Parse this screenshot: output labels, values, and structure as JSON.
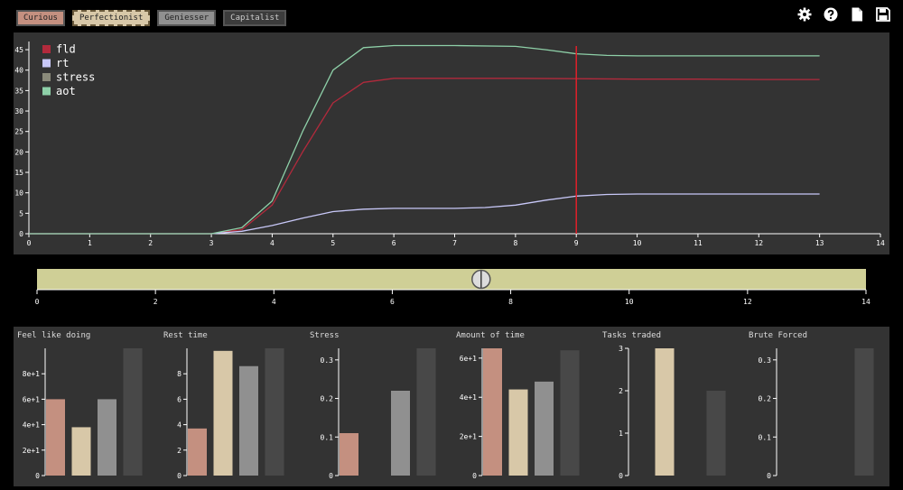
{
  "personas": [
    {
      "label": "Curious",
      "color": "#c49080",
      "selected": false
    },
    {
      "label": "Perfectionist",
      "color": "#d8c8a8",
      "selected": true
    },
    {
      "label": "Geniesser",
      "color": "#909090",
      "selected": false
    },
    {
      "label": "Capitalist",
      "color": "#3c3c3c",
      "selected": false
    }
  ],
  "toolbar_icons": [
    "gear-icon",
    "help-icon",
    "document-icon",
    "save-icon"
  ],
  "colors": {
    "background": "#000000",
    "panel": "#333333",
    "slider": "#cfcf96",
    "cursor": "#e0202a"
  },
  "chart_data": [
    {
      "type": "line",
      "xlim": [
        0,
        14
      ],
      "ylim": [
        0,
        47
      ],
      "x_ticks": [
        0,
        1,
        2,
        3,
        4,
        5,
        6,
        7,
        8,
        9,
        10,
        11,
        12,
        13,
        14
      ],
      "y_ticks": [
        0,
        5,
        10,
        15,
        20,
        25,
        30,
        35,
        40,
        45
      ],
      "cursor_x": 9,
      "legend_position": "top-left",
      "series": [
        {
          "name": "fld",
          "color": "#b22a3c",
          "x": [
            0,
            3,
            3.5,
            4,
            4.5,
            5,
            5.5,
            6,
            7,
            8,
            9,
            10,
            11,
            12,
            13
          ],
          "y": [
            0,
            0,
            1,
            7,
            20,
            32,
            37,
            38,
            38,
            38,
            37.9,
            37.8,
            37.8,
            37.7,
            37.7
          ]
        },
        {
          "name": "rt",
          "color": "#c8c8f8",
          "x": [
            0,
            3,
            3.5,
            4,
            4.5,
            5,
            5.5,
            6,
            7,
            7.5,
            8,
            8.5,
            9,
            9.5,
            10,
            11,
            12,
            13
          ],
          "y": [
            0,
            0,
            0.6,
            2,
            3.8,
            5.4,
            6,
            6.2,
            6.2,
            6.4,
            7,
            8.2,
            9.2,
            9.6,
            9.7,
            9.7,
            9.7,
            9.7
          ]
        },
        {
          "name": "stress",
          "color": "#8a8a7a",
          "x": [],
          "y": []
        },
        {
          "name": "aot",
          "color": "#8ed0a8",
          "x": [
            0,
            3,
            3.5,
            4,
            4.5,
            5,
            5.5,
            6,
            7,
            8,
            8.5,
            9,
            9.5,
            10,
            11,
            12,
            13
          ],
          "y": [
            0,
            0,
            1.5,
            8,
            25,
            40,
            45.5,
            46,
            46,
            45.8,
            45,
            44,
            43.6,
            43.5,
            43.5,
            43.5,
            43.5
          ]
        }
      ]
    },
    {
      "type": "slider",
      "xlim": [
        0,
        14
      ],
      "ticks": [
        0,
        2,
        4,
        6,
        8,
        10,
        12,
        14
      ],
      "value": 7.5
    },
    {
      "type": "bar",
      "title": "Feel like doing",
      "ylim": [
        0,
        100
      ],
      "ticks": [
        0,
        20,
        40,
        60,
        80
      ],
      "tick_labels": [
        "0",
        "2e+1",
        "4e+1",
        "6e+1",
        "8e+1"
      ],
      "values": [
        60,
        38,
        60,
        100
      ],
      "colors": [
        "#c49080",
        "#d8c8a8",
        "#909090",
        "#484848"
      ]
    },
    {
      "type": "bar",
      "title": "Rest time",
      "ylim": [
        0,
        10
      ],
      "ticks": [
        0,
        2,
        4,
        6,
        8
      ],
      "tick_labels": [
        "0",
        "2",
        "4",
        "6",
        "8"
      ],
      "values": [
        3.7,
        9.8,
        8.6,
        10
      ],
      "colors": [
        "#c49080",
        "#d8c8a8",
        "#909090",
        "#484848"
      ]
    },
    {
      "type": "bar",
      "title": "Stress",
      "ylim": [
        0,
        0.33
      ],
      "ticks": [
        0,
        0.1,
        0.2,
        0.3
      ],
      "tick_labels": [
        "0",
        "0.1",
        "0.2",
        "0.3"
      ],
      "values": [
        0.11,
        0,
        0.22,
        0.33
      ],
      "colors": [
        "#c49080",
        "#d8c8a8",
        "#909090",
        "#484848"
      ]
    },
    {
      "type": "bar",
      "title": "Amount of time",
      "ylim": [
        0,
        65
      ],
      "ticks": [
        0,
        20,
        40,
        60
      ],
      "tick_labels": [
        "0",
        "2e+1",
        "4e+1",
        "6e+1"
      ],
      "values": [
        65,
        44,
        48,
        64
      ],
      "colors": [
        "#c49080",
        "#d8c8a8",
        "#909090",
        "#484848"
      ]
    },
    {
      "type": "bar",
      "title": "Tasks traded",
      "ylim": [
        0,
        3
      ],
      "ticks": [
        0,
        1,
        2,
        3
      ],
      "tick_labels": [
        "0",
        "1",
        "2",
        "3"
      ],
      "values": [
        0,
        3,
        0,
        2
      ],
      "colors": [
        "#c49080",
        "#d8c8a8",
        "#909090",
        "#484848"
      ]
    },
    {
      "type": "bar",
      "title": "Brute Forced",
      "ylim": [
        0,
        0.33
      ],
      "ticks": [
        0,
        0.1,
        0.2,
        0.3
      ],
      "tick_labels": [
        "0",
        "0.1",
        "0.2",
        "0.3"
      ],
      "values": [
        0,
        0,
        0,
        0.33
      ],
      "colors": [
        "#c49080",
        "#d8c8a8",
        "#909090",
        "#484848"
      ]
    }
  ]
}
